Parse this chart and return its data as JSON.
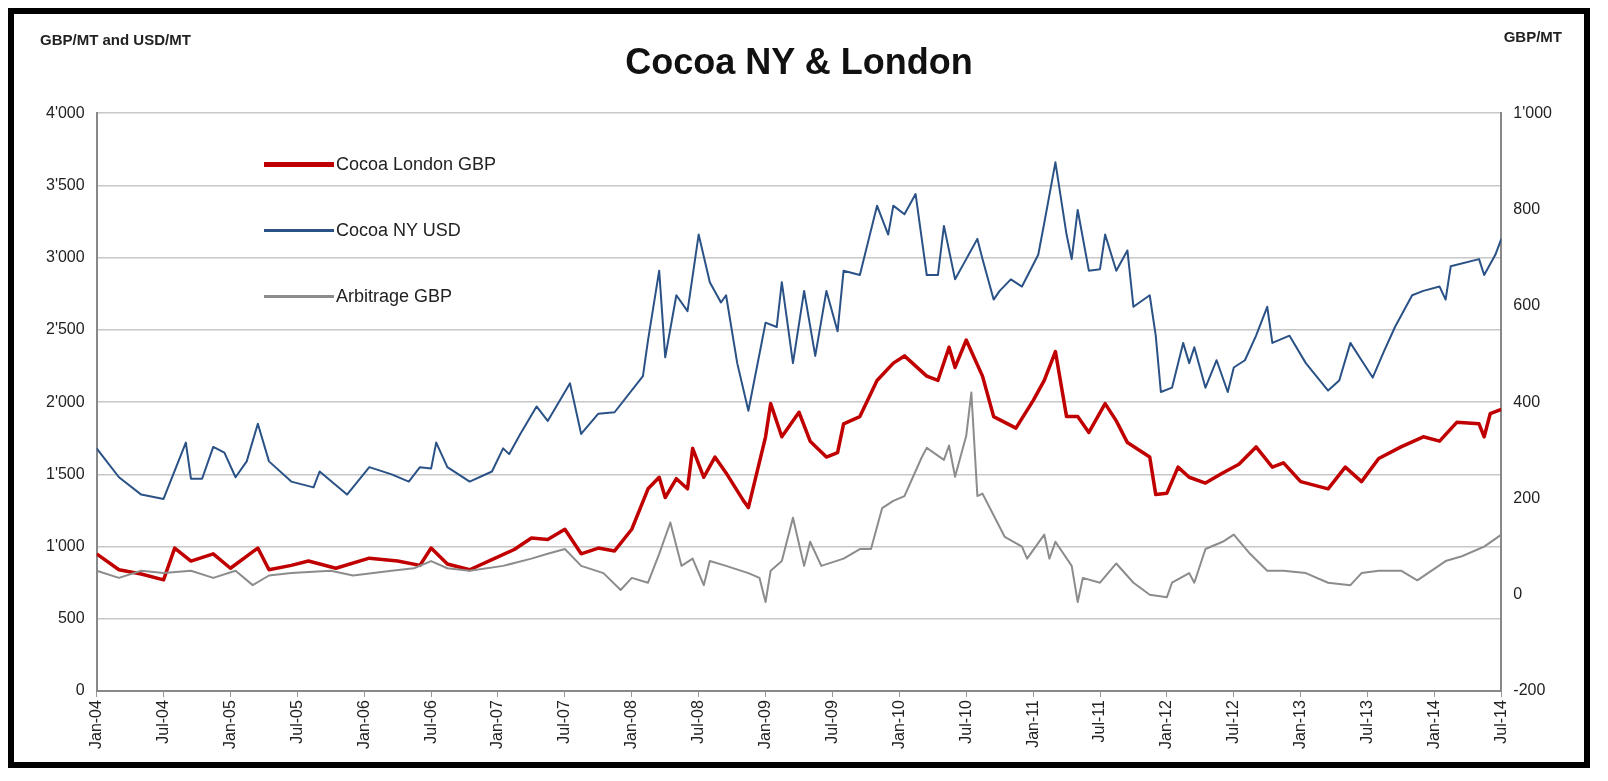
{
  "chart_data": {
    "type": "line",
    "title": "Cocoa NY & London",
    "ylabel": "GBP/MT and USD/MT",
    "y2label": "GBP/MT",
    "xlim": [
      "2004-01",
      "2014-07"
    ],
    "xticks": [
      {
        "value": "2004-01",
        "label": "Jan-04"
      },
      {
        "value": "2004-07",
        "label": "Jul-04"
      },
      {
        "value": "2005-01",
        "label": "Jan-05"
      },
      {
        "value": "2005-07",
        "label": "Jul-05"
      },
      {
        "value": "2006-01",
        "label": "Jan-06"
      },
      {
        "value": "2006-07",
        "label": "Jul-06"
      },
      {
        "value": "2007-01",
        "label": "Jan-07"
      },
      {
        "value": "2007-07",
        "label": "Jul-07"
      },
      {
        "value": "2008-01",
        "label": "Jan-08"
      },
      {
        "value": "2008-07",
        "label": "Jul-08"
      },
      {
        "value": "2009-01",
        "label": "Jan-09"
      },
      {
        "value": "2009-07",
        "label": "Jul-09"
      },
      {
        "value": "2010-01",
        "label": "Jan-10"
      },
      {
        "value": "2010-07",
        "label": "Jul-10"
      },
      {
        "value": "2011-01",
        "label": "Jan-11"
      },
      {
        "value": "2011-07",
        "label": "Jul-11"
      },
      {
        "value": "2012-01",
        "label": "Jan-12"
      },
      {
        "value": "2012-07",
        "label": "Jul-12"
      },
      {
        "value": "2013-01",
        "label": "Jan-13"
      },
      {
        "value": "2013-07",
        "label": "Jul-13"
      },
      {
        "value": "2014-01",
        "label": "Jan-14"
      },
      {
        "value": "2014-07",
        "label": "Jul-14"
      }
    ],
    "ylim": [
      0,
      4000
    ],
    "yticks": [
      0,
      500,
      {
        "value": 1000,
        "label": "1'000"
      },
      {
        "value": 1500,
        "label": "1'500"
      },
      {
        "value": 2000,
        "label": "2'000"
      },
      {
        "value": 2500,
        "label": "2'500"
      },
      {
        "value": 3000,
        "label": "3'000"
      },
      {
        "value": 3500,
        "label": "3'500"
      },
      {
        "value": 4000,
        "label": "4'000"
      }
    ],
    "y2lim": [
      -200,
      1000
    ],
    "y2ticks": [
      -200,
      0,
      200,
      400,
      600,
      800,
      {
        "value": 1000,
        "label": "1'000"
      }
    ],
    "grid": "y",
    "legend": "top left",
    "marker": "none",
    "line_style": "solid",
    "series": [
      {
        "name": "Cocoa London GBP",
        "color": "#c00000",
        "x": [
          "2004-01-01",
          "2004-03-01",
          "2004-05-01",
          "2004-07-01",
          "2004-08-01",
          "2004-09-15",
          "2004-11-15",
          "2005-01-01",
          "2005-03-15",
          "2005-04-15",
          "2005-06-15",
          "2005-08-01",
          "2005-10-15",
          "2006-01-15",
          "2006-04-01",
          "2006-06-01",
          "2006-07-01",
          "2006-08-15",
          "2006-10-15",
          "2006-12-15",
          "2007-02-15",
          "2007-04-01",
          "2007-05-15",
          "2007-07-01",
          "2007-08-15",
          "2007-10-01",
          "2007-11-15",
          "2008-01-01",
          "2008-02-15",
          "2008-03-15",
          "2008-04-01",
          "2008-05-01",
          "2008-06-01",
          "2008-06-15",
          "2008-07-15",
          "2008-08-15",
          "2008-09-15",
          "2008-11-01",
          "2008-11-15",
          "2009-01-01",
          "2009-01-15",
          "2009-02-15",
          "2009-04-01",
          "2009-05-01",
          "2009-06-15",
          "2009-07-15",
          "2009-08-01",
          "2009-09-15",
          "2009-11-01",
          "2009-12-15",
          "2010-01-15",
          "2010-03-15",
          "2010-04-15",
          "2010-05-15",
          "2010-06-01",
          "2010-07-01",
          "2010-08-15",
          "2010-09-15",
          "2010-11-15",
          "2011-01-01",
          "2011-02-01",
          "2011-03-01",
          "2011-04-01",
          "2011-05-01",
          "2011-06-01",
          "2011-07-15",
          "2011-08-15",
          "2011-09-15",
          "2011-11-15",
          "2011-12-01",
          "2012-01-01",
          "2012-02-01",
          "2012-03-01",
          "2012-04-15",
          "2012-06-01",
          "2012-07-15",
          "2012-09-01",
          "2012-10-15",
          "2012-11-15",
          "2013-01-01",
          "2013-03-15",
          "2013-05-01",
          "2013-06-15",
          "2013-08-01",
          "2013-10-01",
          "2013-12-01",
          "2014-01-15",
          "2014-03-01",
          "2014-05-01",
          "2014-05-15",
          "2014-06-01",
          "2014-07-01"
        ],
        "values": [
          950,
          840,
          810,
          770,
          990,
          900,
          950,
          850,
          990,
          840,
          870,
          900,
          850,
          920,
          900,
          870,
          990,
          880,
          840,
          910,
          980,
          1060,
          1050,
          1120,
          950,
          990,
          970,
          1120,
          1400,
          1480,
          1340,
          1470,
          1400,
          1680,
          1480,
          1620,
          1510,
          1320,
          1270,
          1760,
          1990,
          1760,
          1930,
          1730,
          1620,
          1650,
          1850,
          1900,
          2150,
          2270,
          2320,
          2180,
          2150,
          2380,
          2240,
          2430,
          2180,
          1900,
          1820,
          2010,
          2150,
          2350,
          1900,
          1900,
          1790,
          1990,
          1870,
          1720,
          1620,
          1360,
          1370,
          1550,
          1480,
          1440,
          1510,
          1570,
          1690,
          1550,
          1580,
          1450,
          1400,
          1550,
          1450,
          1610,
          1690,
          1760,
          1730,
          1860,
          1850,
          1760,
          1920,
          1950
        ]
      },
      {
        "name": "Cocoa NY USD",
        "color": "#2a5286",
        "x": [
          "2004-01-01",
          "2004-03-01",
          "2004-05-01",
          "2004-07-01",
          "2004-09-01",
          "2004-09-15",
          "2004-10-15",
          "2004-11-15",
          "2004-12-15",
          "2005-01-15",
          "2005-02-15",
          "2005-03-15",
          "2005-04-15",
          "2005-06-15",
          "2005-08-15",
          "2005-09-01",
          "2005-11-15",
          "2006-01-15",
          "2006-03-15",
          "2006-05-01",
          "2006-06-01",
          "2006-07-01",
          "2006-07-15",
          "2006-08-15",
          "2006-10-15",
          "2006-12-15",
          "2007-01-15",
          "2007-02-01",
          "2007-03-01",
          "2007-04-15",
          "2007-05-15",
          "2007-07-15",
          "2007-08-15",
          "2007-10-01",
          "2007-11-15",
          "2008-02-01",
          "2008-02-15",
          "2008-03-15",
          "2008-04-01",
          "2008-05-01",
          "2008-06-01",
          "2008-07-01",
          "2008-08-01",
          "2008-09-01",
          "2008-09-15",
          "2008-10-15",
          "2008-11-15",
          "2009-01-01",
          "2009-02-01",
          "2009-02-15",
          "2009-03-15",
          "2009-04-15",
          "2009-05-15",
          "2009-06-15",
          "2009-07-15",
          "2009-08-01",
          "2009-09-15",
          "2009-11-01",
          "2009-12-01",
          "2009-12-15",
          "2010-01-15",
          "2010-02-15",
          "2010-03-15",
          "2010-04-15",
          "2010-05-01",
          "2010-06-01",
          "2010-07-01",
          "2010-08-01",
          "2010-08-15",
          "2010-09-15",
          "2010-10-01",
          "2010-11-01",
          "2010-12-01",
          "2011-01-15",
          "2011-02-01",
          "2011-03-01",
          "2011-04-01",
          "2011-04-15",
          "2011-05-01",
          "2011-06-01",
          "2011-07-01",
          "2011-07-15",
          "2011-08-15",
          "2011-09-15",
          "2011-10-01",
          "2011-11-15",
          "2011-12-01",
          "2011-12-15",
          "2012-01-15",
          "2012-02-15",
          "2012-03-01",
          "2012-03-15",
          "2012-04-15",
          "2012-05-15",
          "2012-06-15",
          "2012-07-01",
          "2012-08-01",
          "2012-09-01",
          "2012-10-01",
          "2012-10-15",
          "2012-12-01",
          "2013-01-15",
          "2013-03-15",
          "2013-04-15",
          "2013-05-15",
          "2013-06-15",
          "2013-07-15",
          "2013-08-15",
          "2013-09-15",
          "2013-11-01",
          "2013-12-01",
          "2014-01-15",
          "2014-02-01",
          "2014-02-15",
          "2014-05-01",
          "2014-05-15",
          "2014-06-15",
          "2014-07-01"
        ],
        "values": [
          1680,
          1480,
          1360,
          1330,
          1720,
          1470,
          1470,
          1690,
          1650,
          1480,
          1590,
          1850,
          1590,
          1450,
          1410,
          1520,
          1360,
          1550,
          1500,
          1450,
          1550,
          1540,
          1720,
          1550,
          1450,
          1520,
          1680,
          1640,
          1780,
          1970,
          1870,
          2130,
          1780,
          1920,
          1930,
          2180,
          2430,
          2910,
          2310,
          2740,
          2630,
          3160,
          2830,
          2690,
          2740,
          2270,
          1940,
          2550,
          2520,
          2830,
          2270,
          2770,
          2320,
          2770,
          2490,
          2910,
          2880,
          3360,
          3160,
          3360,
          3300,
          3440,
          2880,
          2880,
          3220,
          2850,
          2990,
          3130,
          2990,
          2710,
          2770,
          2850,
          2800,
          3020,
          3240,
          3660,
          3160,
          2990,
          3330,
          2910,
          2920,
          3160,
          2910,
          3050,
          2660,
          2740,
          2460,
          2070,
          2100,
          2410,
          2270,
          2380,
          2100,
          2290,
          2070,
          2240,
          2290,
          2460,
          2660,
          2410,
          2460,
          2270,
          2080,
          2150,
          2410,
          2290,
          2170,
          2350,
          2520,
          2740,
          2770,
          2800,
          2710,
          2940,
          2990,
          2880,
          3020,
          3130
        ]
      },
      {
        "name": "Arbitrage GBP",
        "color": "#8c8c8c",
        "axis": "y2",
        "x": [
          "2004-01-01",
          "2004-03-01",
          "2004-05-01",
          "2004-07-01",
          "2004-09-15",
          "2004-11-15",
          "2005-01-15",
          "2005-03-01",
          "2005-04-15",
          "2005-06-15",
          "2005-10-01",
          "2005-12-01",
          "2006-03-15",
          "2006-05-15",
          "2006-07-01",
          "2006-08-15",
          "2006-10-15",
          "2007-01-15",
          "2007-04-01",
          "2007-05-15",
          "2007-07-01",
          "2007-08-15",
          "2007-10-15",
          "2007-12-01",
          "2008-01-01",
          "2008-02-15",
          "2008-03-15",
          "2008-04-15",
          "2008-05-15",
          "2008-06-15",
          "2008-07-15",
          "2008-08-01",
          "2008-09-15",
          "2008-11-15",
          "2008-12-15",
          "2009-01-01",
          "2009-01-15",
          "2009-02-15",
          "2009-03-15",
          "2009-04-15",
          "2009-05-01",
          "2009-06-01",
          "2009-08-01",
          "2009-09-15",
          "2009-10-15",
          "2009-11-15",
          "2009-12-15",
          "2010-01-15",
          "2010-03-01",
          "2010-03-15",
          "2010-05-01",
          "2010-05-15",
          "2010-06-01",
          "2010-07-01",
          "2010-07-15",
          "2010-08-01",
          "2010-08-15",
          "2010-10-15",
          "2010-12-01",
          "2010-12-15",
          "2011-02-01",
          "2011-02-15",
          "2011-03-01",
          "2011-04-15",
          "2011-05-01",
          "2011-05-15",
          "2011-07-01",
          "2011-08-15",
          "2011-10-01",
          "2011-11-15",
          "2012-01-01",
          "2012-01-15",
          "2012-03-01",
          "2012-03-15",
          "2012-04-15",
          "2012-06-01",
          "2012-07-01",
          "2012-08-15",
          "2012-10-01",
          "2012-11-15",
          "2013-01-15",
          "2013-03-15",
          "2013-05-15",
          "2013-06-15",
          "2013-08-01",
          "2013-10-01",
          "2013-11-15",
          "2014-02-01",
          "2014-03-15",
          "2014-05-15",
          "2014-07-01"
        ],
        "values": [
          50,
          35,
          50,
          45,
          50,
          35,
          50,
          20,
          40,
          45,
          50,
          40,
          50,
          55,
          70,
          55,
          50,
          60,
          75,
          85,
          95,
          60,
          45,
          10,
          35,
          25,
          85,
          150,
          60,
          75,
          20,
          70,
          60,
          45,
          35,
          -15,
          50,
          70,
          160,
          60,
          110,
          60,
          75,
          95,
          95,
          180,
          195,
          205,
          285,
          305,
          280,
          310,
          245,
          330,
          420,
          205,
          210,
          120,
          100,
          75,
          125,
          75,
          110,
          60,
          -15,
          35,
          25,
          65,
          25,
          0,
          -5,
          25,
          45,
          25,
          95,
          110,
          125,
          85,
          50,
          50,
          45,
          25,
          20,
          45,
          50,
          50,
          30,
          70,
          80,
          100,
          125
        ]
      }
    ]
  }
}
